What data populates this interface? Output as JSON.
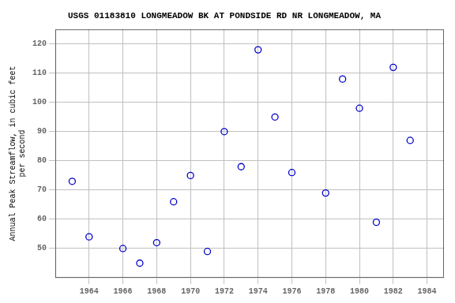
{
  "chart_data": {
    "type": "scatter",
    "title": "USGS 01183810 LONGMEADOW BK AT PONDSIDE RD NR LONGMEADOW, MA",
    "ylabel": "Annual Peak Streamflow, in cubic feet\nper second",
    "x": [
      1963,
      1964,
      1966,
      1967,
      1968,
      1969,
      1970,
      1971,
      1972,
      1973,
      1974,
      1975,
      1976,
      1978,
      1979,
      1980,
      1981,
      1982,
      1983
    ],
    "values": [
      73,
      54,
      50,
      45,
      52,
      66,
      75,
      49,
      90,
      78,
      118,
      95,
      76,
      69,
      108,
      98,
      59,
      112,
      87
    ],
    "xlim": [
      1962,
      1985
    ],
    "ylim": [
      40,
      125
    ],
    "xticks": [
      1964,
      1966,
      1968,
      1970,
      1972,
      1974,
      1976,
      1978,
      1980,
      1982,
      1984
    ],
    "yticks": [
      50,
      60,
      70,
      80,
      90,
      100,
      110,
      120
    ],
    "color": "#0000CC",
    "marker": "circle",
    "grid": true
  }
}
